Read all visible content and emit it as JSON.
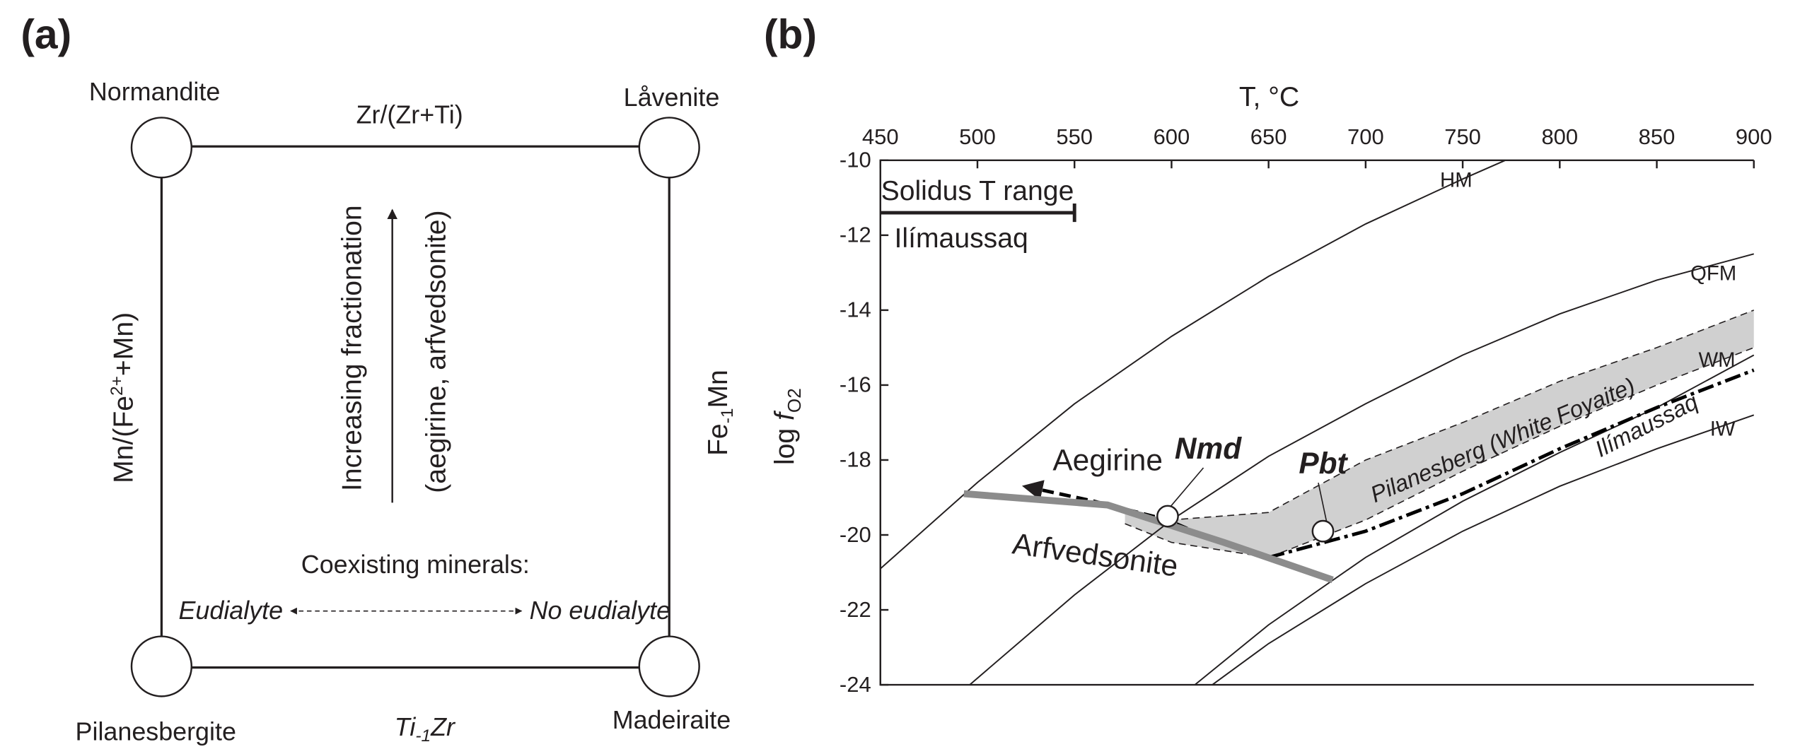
{
  "panel_a": {
    "tag": "(a)",
    "corners": [
      "Normandite",
      "Låvenite",
      "Pilanesbergite",
      "Madeiraite"
    ],
    "top_label": "Zr/(Zr+Ti)",
    "bottom_label": [
      "Ti",
      "-1",
      "Zr"
    ],
    "left_label": [
      "Mn/(Fe",
      "2+",
      "+Mn)"
    ],
    "right_label": [
      "Fe",
      "-1",
      "Mn"
    ],
    "arrow_text": [
      "Increasing fractionation",
      "(aegirine, arfvedsonite)"
    ],
    "coexisting": "Coexisting minerals:",
    "left_mineral": "Eudialyte",
    "right_mineral": "No eudialyte"
  },
  "chart_data": {
    "type": "line",
    "tag": "(b)",
    "x_label": "T, °C",
    "y_label": [
      "log ",
      "f",
      "O2"
    ],
    "xlim": [
      450,
      900
    ],
    "xticks": [
      450,
      500,
      550,
      600,
      650,
      700,
      750,
      800,
      850,
      900
    ],
    "ylim": [
      -24,
      -10
    ],
    "yticks": [
      -10,
      -12,
      -14,
      -16,
      -18,
      -20,
      -22,
      -24
    ],
    "series": [
      {
        "name": "HM",
        "color": "#231f20",
        "style": "solid",
        "x": [
          450,
          500,
          550,
          600,
          650,
          700,
          750,
          772
        ],
        "y": [
          -20.9,
          -18.6,
          -16.5,
          -14.7,
          -13.1,
          -11.7,
          -10.5,
          -10
        ]
      },
      {
        "name": "QFM",
        "color": "#231f20",
        "style": "solid",
        "x": [
          496,
          550,
          600,
          650,
          700,
          750,
          800,
          850,
          900
        ],
        "y": [
          -24,
          -21.6,
          -19.6,
          -17.9,
          -16.5,
          -15.2,
          -14.1,
          -13.2,
          -12.5
        ]
      },
      {
        "name": "WM",
        "color": "#231f20",
        "style": "solid",
        "x": [
          612,
          650,
          700,
          750,
          800,
          850,
          900
        ],
        "y": [
          -24,
          -22.4,
          -20.6,
          -19.1,
          -17.8,
          -16.6,
          -15.2
        ]
      },
      {
        "name": "IW",
        "color": "#231f20",
        "style": "solid",
        "x": [
          621,
          650,
          700,
          750,
          800,
          850,
          900
        ],
        "y": [
          -24,
          -22.9,
          -21.3,
          -19.9,
          -18.7,
          -17.7,
          -16.8
        ]
      },
      {
        "name": "Ilímaussaq",
        "color": "#000000",
        "style": "dashdot",
        "x": [
          650,
          700,
          750,
          800,
          850,
          900
        ],
        "y": [
          -20.6,
          -19.9,
          -18.9,
          -17.7,
          -16.6,
          -15.6
        ]
      },
      {
        "name": "Aegirine",
        "color": "#000000",
        "style": "arrow",
        "x": [
          650,
          620,
          598,
          560,
          524
        ],
        "y": [
          -20.6,
          -20.1,
          -19.6,
          -19.1,
          -18.7
        ]
      },
      {
        "name": "Arfvedsonite",
        "color": "#8c8c8c",
        "style": "thick",
        "x": [
          493,
          567,
          627,
          683
        ],
        "y": [
          -18.9,
          -19.2,
          -20.2,
          -21.2
        ]
      }
    ],
    "band": {
      "name": "Pilanesberg (White Foyaite)",
      "color": "#d0d0d0",
      "x": [
        576,
        600,
        650,
        700,
        750,
        800,
        850,
        900
      ],
      "upper": [
        -19.3,
        -19.6,
        -19.4,
        -18,
        -17,
        -15.9,
        -15,
        -14
      ],
      "lower": [
        -19.7,
        -20.2,
        -20.6,
        -19.6,
        -18.3,
        -17.1,
        -16,
        -15
      ]
    },
    "points": [
      {
        "name": "Nmd",
        "x": 598,
        "y": -19.5
      },
      {
        "name": "Pbt",
        "x": 678,
        "y": -19.9
      }
    ],
    "solidus": {
      "label": "Solidus T range",
      "sublabel": "Ilímaussaq",
      "x": [
        450,
        550
      ],
      "y": -11.4
    }
  }
}
